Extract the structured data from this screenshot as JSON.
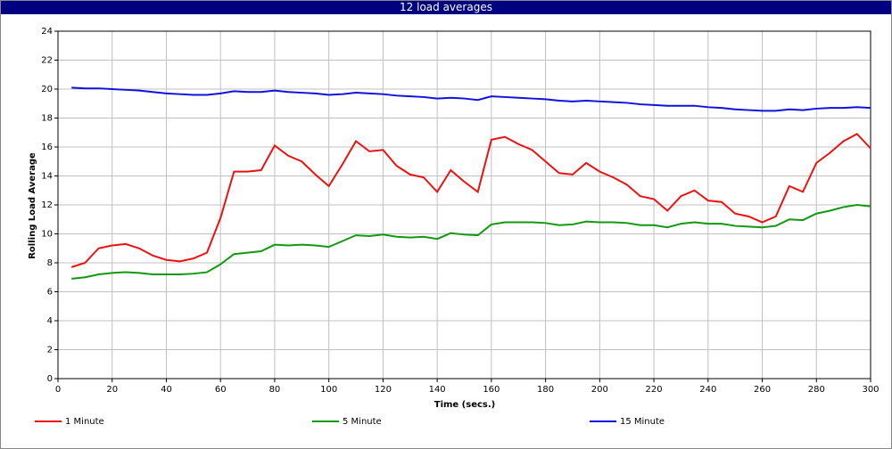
{
  "chart_data": {
    "type": "line",
    "title": "12 load averages",
    "x_label": "Time (secs.)",
    "y_label": "Rolling Load Average",
    "x": [
      5,
      10,
      15,
      20,
      25,
      30,
      35,
      40,
      45,
      50,
      55,
      60,
      65,
      70,
      75,
      80,
      85,
      90,
      95,
      100,
      105,
      110,
      115,
      120,
      125,
      130,
      135,
      140,
      145,
      150,
      155,
      160,
      165,
      170,
      175,
      180,
      185,
      190,
      195,
      200,
      205,
      210,
      215,
      220,
      225,
      230,
      235,
      240,
      245,
      250,
      255,
      260,
      265,
      270,
      275,
      280,
      285,
      290,
      295,
      300
    ],
    "series": [
      {
        "name": "1 Minute",
        "color": "#ee1111",
        "values": [
          7.7,
          8.0,
          9.0,
          9.2,
          9.3,
          9.0,
          8.5,
          8.2,
          8.1,
          8.3,
          8.7,
          11.1,
          14.3,
          14.3,
          14.4,
          16.1,
          15.4,
          15.0,
          14.1,
          13.3,
          14.8,
          16.4,
          15.7,
          15.8,
          14.7,
          14.1,
          13.9,
          12.9,
          14.4,
          13.6,
          12.9,
          16.5,
          16.7,
          16.2,
          15.8,
          15.0,
          14.2,
          14.1,
          14.9,
          14.3,
          13.9,
          13.4,
          12.6,
          12.4,
          11.6,
          12.6,
          13.0,
          12.3,
          12.2,
          11.4,
          11.2,
          10.8,
          11.2,
          13.3,
          12.9,
          14.9,
          15.6,
          16.4,
          16.9,
          15.9
        ]
      },
      {
        "name": "5 Minute",
        "color": "#119911",
        "values": [
          6.9,
          7.0,
          7.2,
          7.3,
          7.35,
          7.3,
          7.2,
          7.2,
          7.2,
          7.25,
          7.35,
          7.9,
          8.6,
          8.7,
          8.8,
          9.25,
          9.2,
          9.25,
          9.2,
          9.1,
          9.5,
          9.9,
          9.85,
          9.95,
          9.8,
          9.75,
          9.8,
          9.65,
          10.05,
          9.95,
          9.9,
          10.65,
          10.8,
          10.8,
          10.8,
          10.75,
          10.6,
          10.65,
          10.85,
          10.8,
          10.8,
          10.75,
          10.6,
          10.6,
          10.45,
          10.7,
          10.8,
          10.7,
          10.7,
          10.55,
          10.5,
          10.45,
          10.55,
          11.0,
          10.95,
          11.4,
          11.6,
          11.85,
          12.0,
          11.9
        ]
      },
      {
        "name": "15 Minute",
        "color": "#1111dd",
        "values": [
          20.1,
          20.05,
          20.05,
          20.0,
          19.95,
          19.9,
          19.8,
          19.7,
          19.65,
          19.6,
          19.6,
          19.7,
          19.85,
          19.8,
          19.8,
          19.9,
          19.8,
          19.75,
          19.7,
          19.6,
          19.65,
          19.75,
          19.7,
          19.65,
          19.55,
          19.5,
          19.45,
          19.35,
          19.4,
          19.35,
          19.25,
          19.5,
          19.45,
          19.4,
          19.35,
          19.3,
          19.2,
          19.15,
          19.2,
          19.15,
          19.1,
          19.05,
          18.95,
          18.9,
          18.85,
          18.85,
          18.85,
          18.75,
          18.7,
          18.6,
          18.55,
          18.5,
          18.5,
          18.6,
          18.55,
          18.65,
          18.7,
          18.7,
          18.75,
          18.7
        ]
      }
    ],
    "xlim": [
      0,
      300
    ],
    "xticks": [
      0,
      20,
      40,
      60,
      80,
      100,
      120,
      140,
      160,
      180,
      200,
      220,
      240,
      260,
      280,
      300
    ],
    "ylim": [
      0,
      24
    ],
    "yticks": [
      0,
      2,
      4,
      6,
      8,
      10,
      12,
      14,
      16,
      18,
      20,
      22,
      24
    ],
    "grid": true,
    "legend": "bottom"
  }
}
